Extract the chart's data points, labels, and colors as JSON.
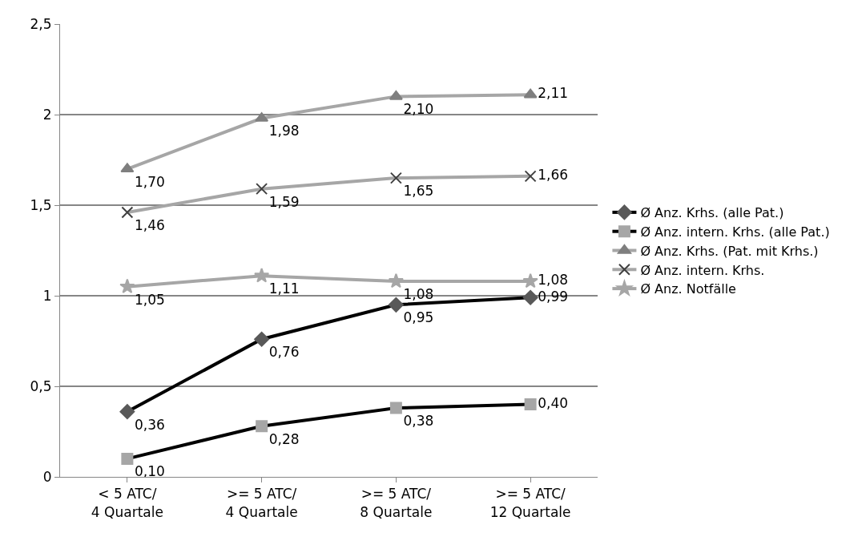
{
  "chart_data": {
    "type": "line",
    "categories": [
      "< 5 ATC/\n4 Quartale",
      ">= 5 ATC/\n4 Quartale",
      ">= 5 ATC/\n8 Quartale",
      ">= 5 ATC/\n12 Quartale"
    ],
    "series": [
      {
        "name": "Ø Anz. Krhs. (alle Pat.)",
        "color": "#000000",
        "marker": "diamond",
        "values": [
          0.36,
          0.76,
          0.95,
          0.99
        ],
        "value_labels": [
          "0,36",
          "0,76",
          "0,95",
          "0,99"
        ]
      },
      {
        "name": "Ø Anz. intern. Krhs. (alle Pat.)",
        "color": "#000000",
        "marker": "square",
        "values": [
          0.1,
          0.28,
          0.38,
          0.4
        ],
        "value_labels": [
          "0,10",
          "0,28",
          "0,38",
          "0,40"
        ]
      },
      {
        "name": "Ø Anz. Krhs. (Pat. mit Krhs.)",
        "color": "#a6a6a6",
        "marker": "triangle",
        "values": [
          1.7,
          1.98,
          2.1,
          2.11
        ],
        "value_labels": [
          "1,70",
          "1,98",
          "2,10",
          "2,11"
        ]
      },
      {
        "name": "Ø Anz. intern. Krhs.",
        "color": "#a6a6a6",
        "marker": "cross",
        "values": [
          1.46,
          1.59,
          1.65,
          1.66
        ],
        "value_labels": [
          "1,46",
          "1,59",
          "1,65",
          "1,66"
        ]
      },
      {
        "name": "Ø Anz. Notfälle",
        "color": "#a6a6a6",
        "marker": "star",
        "values": [
          1.05,
          1.11,
          1.08,
          1.08
        ],
        "value_labels": [
          "1,05",
          "1,11",
          "1,08",
          "1,08"
        ]
      }
    ],
    "ylim": [
      0,
      2.5
    ],
    "yticks": [
      0,
      {
        "value": 0.5,
        "label": "0,5"
      },
      1,
      {
        "value": 1.5,
        "label": "1,5"
      },
      2,
      {
        "value": 2.5,
        "label": "2,5"
      }
    ],
    "grid": "y",
    "legend": "right",
    "line_style": "solid"
  }
}
